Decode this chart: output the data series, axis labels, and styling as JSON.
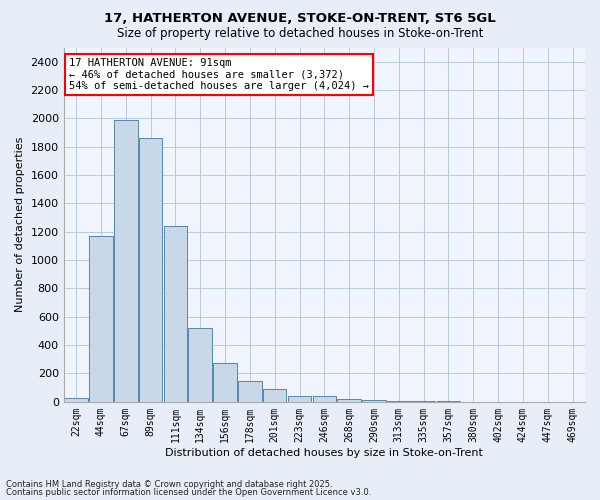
{
  "title1": "17, HATHERTON AVENUE, STOKE-ON-TRENT, ST6 5GL",
  "title2": "Size of property relative to detached houses in Stoke-on-Trent",
  "xlabel": "Distribution of detached houses by size in Stoke-on-Trent",
  "ylabel": "Number of detached properties",
  "categories": [
    "22sqm",
    "44sqm",
    "67sqm",
    "89sqm",
    "111sqm",
    "134sqm",
    "156sqm",
    "178sqm",
    "201sqm",
    "223sqm",
    "246sqm",
    "268sqm",
    "290sqm",
    "313sqm",
    "335sqm",
    "357sqm",
    "380sqm",
    "402sqm",
    "424sqm",
    "447sqm",
    "469sqm"
  ],
  "values": [
    25,
    1170,
    1990,
    1860,
    1240,
    520,
    275,
    150,
    90,
    40,
    40,
    20,
    15,
    5,
    3,
    3,
    2,
    2,
    2,
    2,
    2
  ],
  "bar_color": "#c8d8e8",
  "bar_edge_color": "#5588aa",
  "annotation_text": "17 HATHERTON AVENUE: 91sqm\n← 46% of detached houses are smaller (3,372)\n54% of semi-detached houses are larger (4,024) →",
  "annotation_box_color": "white",
  "annotation_box_edge": "red",
  "ylim": [
    0,
    2500
  ],
  "yticks": [
    0,
    200,
    400,
    600,
    800,
    1000,
    1200,
    1400,
    1600,
    1800,
    2000,
    2200,
    2400
  ],
  "bg_color": "#e8eef8",
  "plot_bg_color": "#f0f4fc",
  "footer1": "Contains HM Land Registry data © Crown copyright and database right 2025.",
  "footer2": "Contains public sector information licensed under the Open Government Licence v3.0."
}
